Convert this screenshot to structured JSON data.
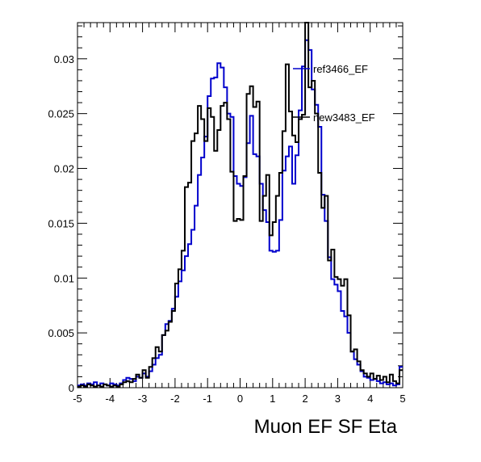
{
  "chart_data": {
    "type": "step-histogram",
    "title": "",
    "xlabel": "Muon EF SF Eta",
    "ylabel": "",
    "xlim": [
      -5,
      5
    ],
    "ylim": [
      0,
      0.0333
    ],
    "xticks": [
      -5,
      -4,
      -3,
      -2,
      -1,
      0,
      1,
      2,
      3,
      4,
      5
    ],
    "xtick_labels": [
      "-5",
      "-4",
      "-3",
      "-2",
      "-1",
      "0",
      "1",
      "2",
      "3",
      "4",
      "5"
    ],
    "yticks": [
      0,
      0.005,
      0.01,
      0.015,
      0.02,
      0.025,
      0.03
    ],
    "ytick_labels": [
      "0",
      "0.005",
      "0.01",
      "0.015",
      "0.02",
      "0.025",
      "0.03"
    ],
    "grid": false,
    "legend_position": "top-right",
    "bin_edges_range": [
      -5,
      5
    ],
    "bin_count": 100,
    "series": [
      {
        "name": "ref3466_EF",
        "color": "#0000cc",
        "values": [
          0.0002,
          0.0003,
          0.0002,
          0.0004,
          0.0003,
          0.0005,
          0.0002,
          0.0004,
          0.0003,
          0.0002,
          0.0004,
          0.0003,
          0.0002,
          0.0004,
          0.0007,
          0.0009,
          0.0008,
          0.0006,
          0.001,
          0.0009,
          0.0013,
          0.001,
          0.0015,
          0.0021,
          0.0027,
          0.003,
          0.0048,
          0.0058,
          0.0061,
          0.0072,
          0.0083,
          0.0097,
          0.0107,
          0.012,
          0.0131,
          0.0144,
          0.0166,
          0.0194,
          0.021,
          0.0229,
          0.0266,
          0.0282,
          0.0283,
          0.0296,
          0.0292,
          0.0274,
          0.025,
          0.0247,
          0.0193,
          0.0186,
          0.0184,
          0.0192,
          0.0223,
          0.0248,
          0.0213,
          0.0211,
          0.0186,
          0.0162,
          0.0151,
          0.0125,
          0.0124,
          0.0125,
          0.0153,
          0.0198,
          0.0211,
          0.022,
          0.0186,
          0.0212,
          0.0253,
          0.0293,
          0.0317,
          0.0308,
          0.0272,
          0.0258,
          0.0238,
          0.0176,
          0.0152,
          0.0119,
          0.0099,
          0.0094,
          0.0088,
          0.007,
          0.0065,
          0.005,
          0.0033,
          0.0026,
          0.0021,
          0.0015,
          0.001,
          0.0009,
          0.0007,
          0.0008,
          0.0006,
          0.0004,
          0.0005,
          0.0003,
          0.0004,
          0.0002,
          0.0003,
          0.0019
        ]
      },
      {
        "name": "new3483_EF",
        "color": "#000000",
        "values": [
          0.0001,
          0.0002,
          0.0001,
          0.0003,
          0.0002,
          0.0001,
          0.0002,
          0.0001,
          0.0003,
          0.0002,
          0.0001,
          0.0002,
          0.0001,
          0.0003,
          0.0005,
          0.0006,
          0.0005,
          0.0008,
          0.0012,
          0.0009,
          0.0016,
          0.0009,
          0.0019,
          0.0027,
          0.0037,
          0.0033,
          0.0048,
          0.0052,
          0.006,
          0.007,
          0.0095,
          0.0108,
          0.0125,
          0.0183,
          0.0187,
          0.0225,
          0.0232,
          0.0257,
          0.0245,
          0.0225,
          0.0255,
          0.0247,
          0.0216,
          0.0235,
          0.0257,
          0.026,
          0.0245,
          0.0197,
          0.0152,
          0.0154,
          0.0153,
          0.0193,
          0.0268,
          0.0275,
          0.0256,
          0.0261,
          0.0152,
          0.0175,
          0.0194,
          0.0139,
          0.0151,
          0.0175,
          0.0196,
          0.0234,
          0.0295,
          0.0252,
          0.023,
          0.0224,
          0.0245,
          0.0249,
          0.0333,
          0.0274,
          0.028,
          0.025,
          0.0196,
          0.0164,
          0.0175,
          0.0116,
          0.0126,
          0.0101,
          0.0099,
          0.0093,
          0.0099,
          0.0066,
          0.0033,
          0.0035,
          0.0024,
          0.0016,
          0.0013,
          0.001,
          0.0013,
          0.0008,
          0.0011,
          0.0007,
          0.001,
          0.0005,
          0.0012,
          0.0006,
          0.0004,
          0.0016
        ]
      }
    ]
  }
}
